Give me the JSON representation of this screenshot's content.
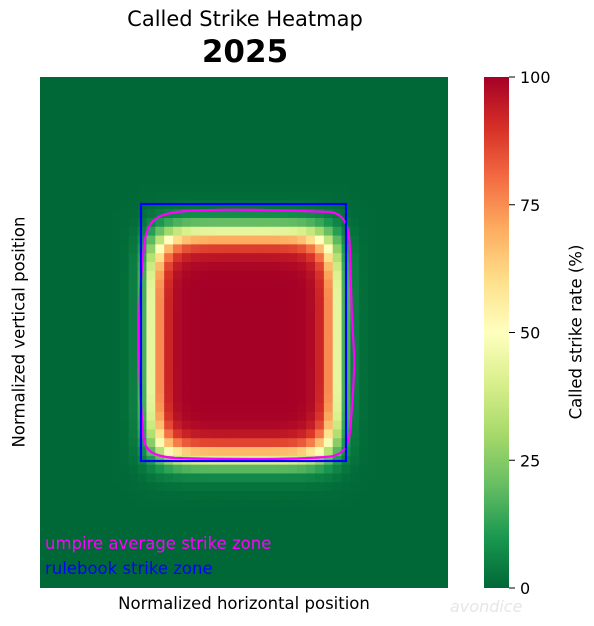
{
  "chart_data": {
    "type": "heatmap",
    "title": "Called Strike Heatmap",
    "subtitle": "2025",
    "xlabel": "Normalized horizontal position",
    "ylabel": "Normalized vertical position",
    "colorbar": {
      "label": "Called strike rate (%)",
      "range": [
        0,
        100
      ],
      "ticks": [
        0,
        25,
        50,
        75,
        100
      ],
      "colormap": "RdYlGn_r"
    },
    "heatmap_region": {
      "description": "Called strike rate is ~100% inside the rulebook zone core, falling to ~0% well outside it",
      "x_range": [
        0,
        1
      ],
      "y_range": [
        0,
        1
      ],
      "core_x": [
        0.28,
        0.72
      ],
      "core_y": [
        0.31,
        0.74
      ],
      "core_value": 100,
      "outside_value": 0
    },
    "overlays": [
      {
        "name": "umpire average strike zone",
        "color": "#ff00ff",
        "shape": "rounded-rectangle"
      },
      {
        "name": "rulebook strike zone",
        "color": "#0000ff",
        "shape": "rectangle"
      }
    ],
    "legend_placement": "lower-left"
  },
  "watermark": "avondice",
  "colors": {
    "umpire_zone": "#ff00ff",
    "rulebook_zone": "#0000ff"
  }
}
